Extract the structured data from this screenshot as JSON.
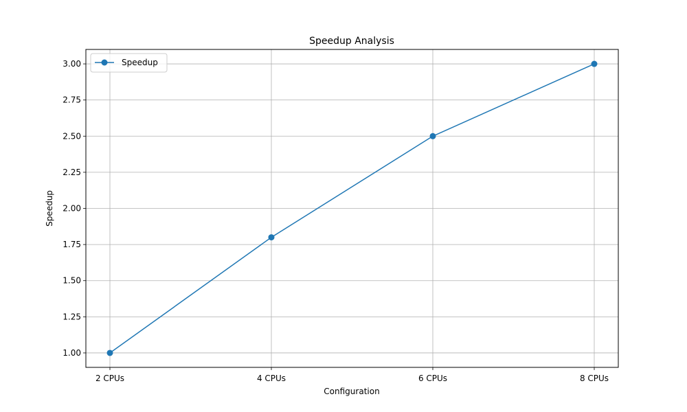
{
  "chart_data": {
    "type": "line",
    "title": "Speedup Analysis",
    "xlabel": "Configuration",
    "ylabel": "Speedup",
    "categories": [
      "2 CPUs",
      "4 CPUs",
      "6 CPUs",
      "8 CPUs"
    ],
    "series": [
      {
        "name": "Speedup",
        "values": [
          1.0,
          1.8,
          2.5,
          3.0
        ],
        "color": "#1f77b4",
        "marker": "circle"
      }
    ],
    "ylim": [
      0.9,
      3.1
    ],
    "yticks": [
      "1.00",
      "1.25",
      "1.50",
      "1.75",
      "2.00",
      "2.25",
      "2.50",
      "2.75",
      "3.00"
    ],
    "grid": true,
    "legend_position": "top-left"
  }
}
